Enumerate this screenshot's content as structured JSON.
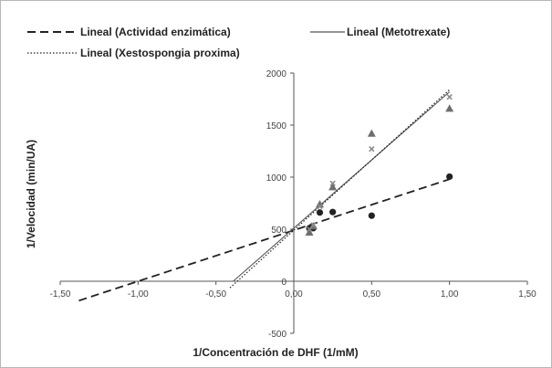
{
  "chart_data": {
    "type": "scatter",
    "xlabel": "1/Concentración de DHF (1/mM)",
    "ylabel": "1/Velocidad (min/UA)",
    "xlim": [
      -1.5,
      1.5
    ],
    "ylim": [
      -500,
      2000
    ],
    "x_ticks": [
      "-1,50",
      "-1,00",
      "-0,50",
      "0,00",
      "0,50",
      "1,00",
      "1,50"
    ],
    "y_ticks": [
      "-500",
      "0",
      "500",
      "1000",
      "1500",
      "2000"
    ],
    "x_tick_values": [
      -1.5,
      -1.0,
      -0.5,
      0.0,
      0.5,
      1.0,
      1.5
    ],
    "y_tick_values": [
      -500,
      0,
      500,
      1000,
      1500,
      2000
    ],
    "grid": false,
    "legend_position": "top",
    "series": [
      {
        "marker": "circle",
        "color": "#222222",
        "points": [
          [
            0.1,
            510
          ],
          [
            0.125,
            510
          ],
          [
            0.167,
            660
          ],
          [
            0.25,
            665
          ],
          [
            0.5,
            630
          ],
          [
            1.0,
            1005
          ]
        ]
      },
      {
        "marker": "triangle",
        "color": "#6e6e6e",
        "points": [
          [
            0.1,
            470
          ],
          [
            0.125,
            530
          ],
          [
            0.167,
            740
          ],
          [
            0.25,
            905
          ],
          [
            0.5,
            1420
          ],
          [
            1.0,
            1660
          ]
        ]
      },
      {
        "marker": "x",
        "color": "#8a8a8a",
        "points": [
          [
            0.1,
            500
          ],
          [
            0.125,
            540
          ],
          [
            0.167,
            720
          ],
          [
            0.25,
            940
          ],
          [
            0.5,
            1270
          ],
          [
            1.0,
            1770
          ]
        ]
      }
    ],
    "trendlines": [
      {
        "name": "Lineal (Actividad enzimática)",
        "style": "dashed",
        "color": "#222222",
        "x_range": [
          -1.38,
          1.0
        ],
        "slope": 490,
        "intercept": 490
      },
      {
        "name": "Lineal (Metotrexate)",
        "style": "solid",
        "color": "#555555",
        "x_range": [
          -0.39,
          1.0
        ],
        "slope": 1310,
        "intercept": 510
      },
      {
        "name": "Lineal (Xestospongia proxima)",
        "style": "dotted",
        "color": "#222222",
        "x_range": [
          -0.41,
          1.0
        ],
        "slope": 1350,
        "intercept": 490
      }
    ]
  }
}
